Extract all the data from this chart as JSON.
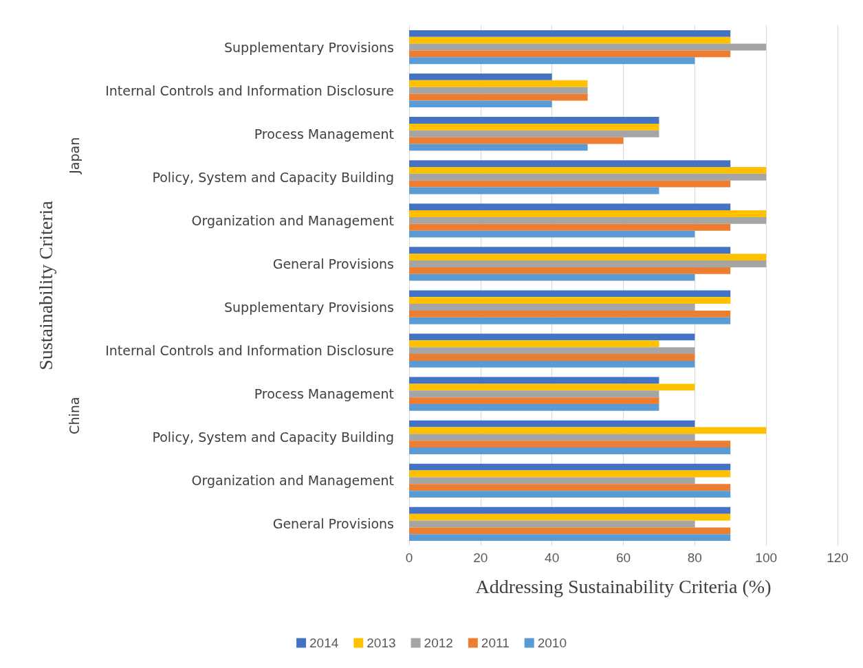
{
  "chart_data": {
    "type": "bar",
    "orientation": "horizontal",
    "xlabel": "Addressing Sustainability Criteria (%)",
    "ylabel": "Sustainability Criteria",
    "categories": [
      "Supplementary Provisions",
      "Internal Controls and Information Disclosure",
      "Process Management",
      "Policy, System and Capacity Building",
      "Organization and Management",
      "General Provisions",
      "Supplementary Provisions",
      "Internal Controls and Information Disclosure",
      "Process Management",
      "Policy, System and Capacity Building",
      "Organization and Management",
      "General Provisions"
    ],
    "series": [
      {
        "name": "2014",
        "color": "#4472c4",
        "values": [
          90,
          40,
          70,
          90,
          90,
          90,
          90,
          80,
          70,
          80,
          90,
          90
        ]
      },
      {
        "name": "2013",
        "color": "#ffc000",
        "values": [
          90,
          50,
          70,
          100,
          100,
          100,
          90,
          70,
          80,
          100,
          90,
          90
        ]
      },
      {
        "name": "2012",
        "color": "#a5a5a5",
        "values": [
          100,
          50,
          70,
          100,
          100,
          100,
          80,
          80,
          70,
          80,
          80,
          80
        ]
      },
      {
        "name": "2011",
        "color": "#ed7d31",
        "values": [
          90,
          50,
          60,
          90,
          90,
          90,
          90,
          80,
          70,
          90,
          90,
          90
        ]
      },
      {
        "name": "2010",
        "color": "#5b9bd5",
        "values": [
          80,
          40,
          50,
          70,
          80,
          80,
          90,
          80,
          70,
          90,
          90,
          90
        ]
      }
    ],
    "annotations": [
      "Japan",
      "China"
    ],
    "xlim": [
      0,
      120
    ],
    "xticks": [
      0,
      20,
      40,
      60,
      80,
      100,
      120
    ],
    "grid": "x",
    "legend": "bottom"
  }
}
